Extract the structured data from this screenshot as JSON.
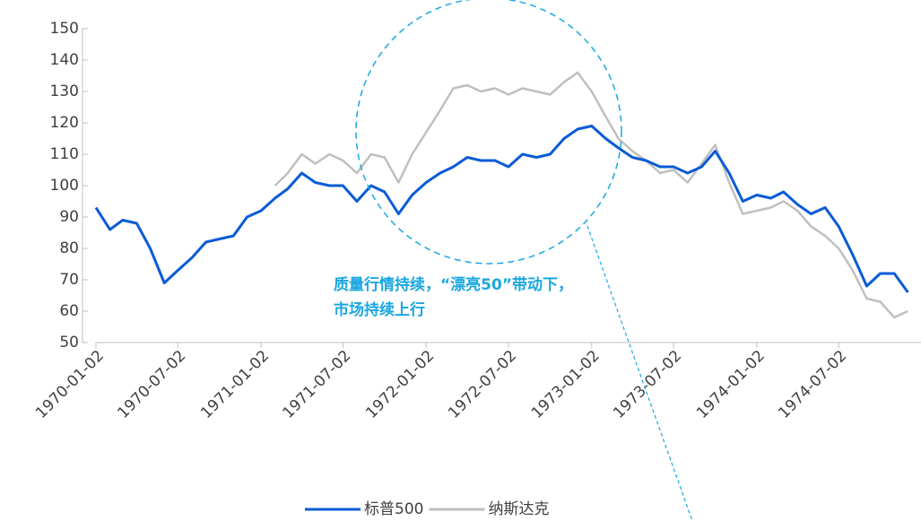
{
  "chart_data": {
    "type": "line",
    "x": [
      "1970-01-02",
      "1970-02-02",
      "1970-03-02",
      "1970-04-02",
      "1970-05-02",
      "1970-06-02",
      "1970-07-02",
      "1970-08-02",
      "1970-09-02",
      "1970-10-02",
      "1970-11-02",
      "1970-12-02",
      "1971-01-02",
      "1971-02-02",
      "1971-03-02",
      "1971-04-02",
      "1971-05-02",
      "1971-06-02",
      "1971-07-02",
      "1971-08-02",
      "1971-09-02",
      "1971-10-02",
      "1971-11-02",
      "1971-12-02",
      "1972-01-02",
      "1972-02-02",
      "1972-03-02",
      "1972-04-02",
      "1972-05-02",
      "1972-06-02",
      "1972-07-02",
      "1972-08-02",
      "1972-09-02",
      "1972-10-02",
      "1972-11-02",
      "1972-12-02",
      "1973-01-02",
      "1973-02-02",
      "1973-03-02",
      "1973-04-02",
      "1973-05-02",
      "1973-06-02",
      "1973-07-02",
      "1973-08-02",
      "1973-09-02",
      "1973-10-02",
      "1973-11-02",
      "1973-12-02",
      "1974-01-02",
      "1974-02-02",
      "1974-03-02",
      "1974-04-02",
      "1974-05-02",
      "1974-06-02",
      "1974-07-02",
      "1974-08-02",
      "1974-09-02",
      "1974-10-02",
      "1974-11-02",
      "1974-12-02"
    ],
    "series": [
      {
        "name": "标普500",
        "color": "#0a5bd6",
        "values": [
          93,
          86,
          89,
          88,
          80,
          69,
          73,
          77,
          82,
          83,
          84,
          90,
          92,
          96,
          99,
          104,
          101,
          100,
          100,
          95,
          100,
          98,
          91,
          97,
          101,
          104,
          106,
          109,
          108,
          108,
          106,
          110,
          109,
          110,
          115,
          118,
          119,
          115,
          112,
          109,
          108,
          106,
          106,
          104,
          106,
          111,
          104,
          95,
          97,
          96,
          98,
          94,
          91,
          93,
          87,
          78,
          68,
          72,
          72,
          66
        ]
      },
      {
        "name": "纳斯达克",
        "color": "#bfbfbf",
        "values": [
          null,
          null,
          null,
          null,
          null,
          null,
          null,
          null,
          null,
          null,
          null,
          null,
          null,
          100,
          104,
          110,
          107,
          110,
          108,
          104,
          110,
          109,
          101,
          110,
          117,
          124,
          131,
          132,
          130,
          131,
          129,
          131,
          130,
          129,
          133,
          136,
          130,
          122,
          115,
          111,
          108,
          104,
          105,
          101,
          107,
          113,
          101,
          91,
          92,
          93,
          95,
          92,
          87,
          84,
          80,
          73,
          64,
          63,
          58,
          60
        ]
      }
    ],
    "xlim": [
      "1970-01-02",
      "1974-12-31"
    ],
    "xticks": [
      "1970-01-02",
      "1970-07-02",
      "1971-01-02",
      "1971-07-02",
      "1972-01-02",
      "1972-07-02",
      "1973-01-02",
      "1973-07-02",
      "1974-01-02",
      "1974-07-02"
    ],
    "ylim": [
      50,
      150
    ],
    "yticks": [
      50,
      60,
      70,
      80,
      90,
      100,
      110,
      120,
      130,
      140,
      150
    ],
    "annotation": [
      "质量行情持续，“漂亮50”带动下，",
      "市场持续上行"
    ],
    "legend": "bottom"
  }
}
